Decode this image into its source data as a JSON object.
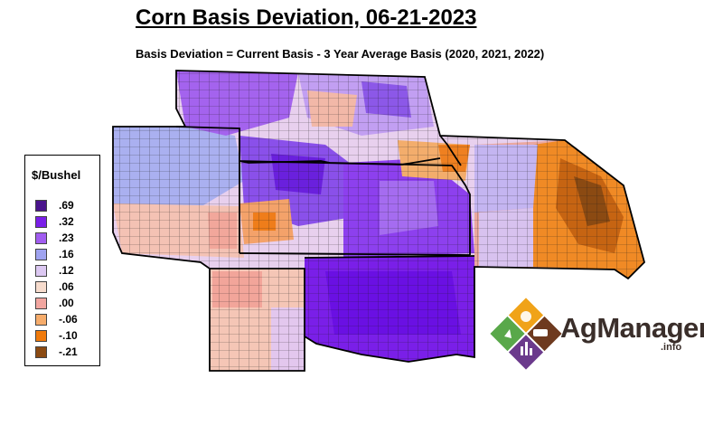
{
  "title": "Corn Basis Deviation, 06-21-2023",
  "subtitle": "Basis Deviation = Current Basis - 3 Year Average Basis (2020, 2021, 2022)",
  "legend": {
    "title": "$/Bushel",
    "items": [
      {
        "label": ".69",
        "color": "#4a148c"
      },
      {
        "label": ".32",
        "color": "#7a1fe8"
      },
      {
        "label": ".23",
        "color": "#a15df0"
      },
      {
        "label": ".16",
        "color": "#9fa3f0"
      },
      {
        "label": ".12",
        "color": "#dcc8f2"
      },
      {
        "label": ".06",
        "color": "#f7dccd"
      },
      {
        "label": ".00",
        "color": "#f2a6a0"
      },
      {
        "label": "-.06",
        "color": "#f6ac6b"
      },
      {
        "label": "-.10",
        "color": "#f07a0b"
      },
      {
        "label": "-.21",
        "color": "#8b4a12"
      }
    ]
  },
  "logo": {
    "name": "AgManager",
    "suffix": ".info",
    "colors": [
      "#f0a319",
      "#6e3a1f",
      "#59a84a",
      "#6b3a8c"
    ]
  }
}
